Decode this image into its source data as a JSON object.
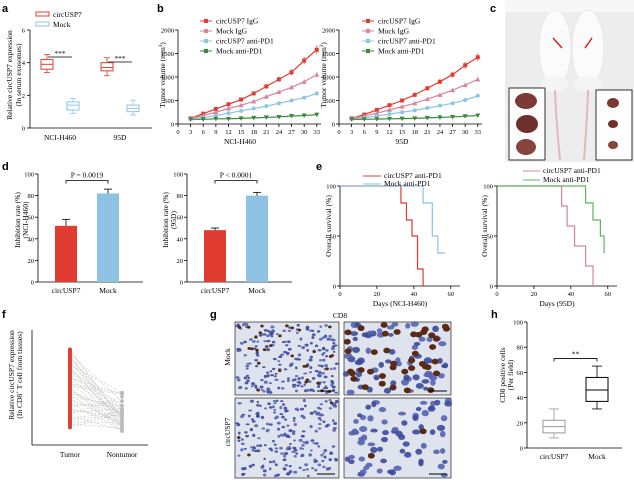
{
  "panels": {
    "a": {
      "letter": "a",
      "legend": [
        "circUSP7",
        "Mock"
      ],
      "ylabel": "Relative circUSP7 expression",
      "ylabel2": "(In serum exosomes)",
      "yticks": [
        "0",
        "2",
        "4",
        "6"
      ],
      "groups": [
        "NCI-H460",
        "95D"
      ],
      "sig": [
        "***",
        "***"
      ],
      "colors": {
        "circ": "#e03c31",
        "mock": "#8ec3e6"
      },
      "boxes": [
        {
          "group": 0,
          "series": "circ",
          "min": 3.4,
          "q1": 3.6,
          "med": 3.9,
          "q3": 4.2,
          "max": 4.5
        },
        {
          "group": 0,
          "series": "mock",
          "min": 0.9,
          "q1": 1.1,
          "med": 1.4,
          "q3": 1.6,
          "max": 1.8
        },
        {
          "group": 1,
          "series": "circ",
          "min": 3.2,
          "q1": 3.5,
          "med": 3.7,
          "q3": 4.0,
          "max": 4.3
        },
        {
          "group": 1,
          "series": "mock",
          "min": 0.8,
          "q1": 1.0,
          "med": 1.2,
          "q3": 1.4,
          "max": 1.7
        }
      ]
    },
    "b": {
      "letter": "b",
      "legend": [
        "circUSP7 IgG",
        "Mock IgG",
        "circUSP7 anti-PD1",
        "Mock anti-PD1"
      ],
      "colors": [
        "#e03c31",
        "#d9849b",
        "#8ec3e6",
        "#3a8a3a"
      ],
      "ylabel": "Tumor volume (mm",
      "ysup": "3",
      "ytail": ")",
      "yticks": [
        "0",
        "500",
        "1000",
        "1500",
        "2000"
      ],
      "xticks": [
        "0",
        "3",
        "6",
        "9",
        "12",
        "15",
        "18",
        "21",
        "24",
        "27",
        "30",
        "33"
      ],
      "titles": [
        "NCI-H460",
        "95D"
      ],
      "charts": [
        {
          "series": [
            {
              "x": [
                3,
                6,
                9,
                12,
                15,
                18,
                21,
                24,
                27,
                30,
                33
              ],
              "y": [
                120,
                220,
                320,
                420,
                520,
                650,
                800,
                950,
                1100,
                1350,
                1580
              ]
            },
            {
              "x": [
                3,
                6,
                9,
                12,
                15,
                18,
                21,
                24,
                27,
                30,
                33
              ],
              "y": [
                120,
                180,
                250,
                330,
                400,
                480,
                580,
                680,
                780,
                900,
                1050
              ]
            },
            {
              "x": [
                3,
                6,
                9,
                12,
                15,
                18,
                21,
                24,
                27,
                30,
                33
              ],
              "y": [
                110,
                140,
                180,
                230,
                280,
                330,
                380,
                440,
                500,
                560,
                650
              ]
            },
            {
              "x": [
                3,
                6,
                9,
                12,
                15,
                18,
                21,
                24,
                27,
                30,
                33
              ],
              "y": [
                100,
                100,
                110,
                110,
                120,
                130,
                140,
                150,
                170,
                180,
                200
              ]
            }
          ]
        },
        {
          "series": [
            {
              "x": [
                3,
                6,
                9,
                12,
                15,
                18,
                21,
                24,
                27,
                30,
                33
              ],
              "y": [
                120,
                200,
                300,
                400,
                500,
                620,
                760,
                900,
                1050,
                1250,
                1420
              ]
            },
            {
              "x": [
                3,
                6,
                9,
                12,
                15,
                18,
                21,
                24,
                27,
                30,
                33
              ],
              "y": [
                120,
                170,
                230,
                300,
                370,
                440,
                530,
                620,
                720,
                830,
                950
              ]
            },
            {
              "x": [
                3,
                6,
                9,
                12,
                15,
                18,
                21,
                24,
                27,
                30,
                33
              ],
              "y": [
                110,
                130,
                170,
                210,
                250,
                290,
                340,
                390,
                440,
                510,
                600
              ]
            },
            {
              "x": [
                3,
                6,
                9,
                12,
                15,
                18,
                21,
                24,
                27,
                30,
                33
              ],
              "y": [
                100,
                100,
                105,
                110,
                115,
                120,
                130,
                140,
                150,
                165,
                180
              ]
            }
          ]
        }
      ]
    },
    "c": {
      "letter": "c"
    },
    "d": {
      "letter": "d",
      "ylabel": "Inhibition rate (%)",
      "ylabel2": [
        "(NCI-H460)",
        "(95D)"
      ],
      "yticks": [
        "0",
        "20",
        "40",
        "60",
        "80",
        "100"
      ],
      "categories": [
        "circUSP7",
        "Mock"
      ],
      "pvalues": [
        "P = 0.0019",
        "P < 0.0001"
      ],
      "colors": [
        "#e03c31",
        "#8ec3e6"
      ],
      "charts": [
        {
          "values": [
            52,
            82
          ],
          "err": [
            6,
            4
          ]
        },
        {
          "values": [
            48,
            80
          ],
          "err": [
            2,
            3
          ]
        }
      ]
    },
    "e": {
      "letter": "e",
      "legend": [
        "circUSP7 anti-PD1",
        "Mock anti-PD1"
      ],
      "colors": [
        [
          "#e03c31",
          "#8ec3e6"
        ],
        [
          "#d9849b",
          "#5cb85c"
        ]
      ],
      "ylabel": "Overall survival (%)",
      "yticks": [
        "0",
        "50",
        "100"
      ],
      "xticks": [
        "0",
        "20",
        "40",
        "60"
      ],
      "xlabels": [
        "Days (NCI-H460)",
        "Days (95D)"
      ],
      "charts": [
        {
          "series": [
            {
              "x": [
                0,
                33,
                33,
                36,
                36,
                39,
                39,
                42,
                42,
                45,
                45
              ],
              "y": [
                100,
                100,
                83,
                83,
                66,
                66,
                50,
                50,
                17,
                17,
                0
              ]
            },
            {
              "x": [
                0,
                45,
                45,
                50,
                50,
                53,
                53,
                57
              ],
              "y": [
                100,
                100,
                83,
                83,
                50,
                50,
                33,
                33
              ]
            }
          ]
        },
        {
          "series": [
            {
              "x": [
                0,
                35,
                35,
                38,
                38,
                42,
                42,
                48,
                48,
                52,
                52
              ],
              "y": [
                100,
                100,
                80,
                80,
                60,
                60,
                40,
                40,
                20,
                20,
                0
              ]
            },
            {
              "x": [
                0,
                48,
                48,
                52,
                52,
                56,
                56,
                58,
                58
              ],
              "y": [
                100,
                100,
                83,
                83,
                66,
                66,
                50,
                50,
                33
              ]
            }
          ]
        }
      ]
    },
    "f": {
      "letter": "f",
      "ylabel": "Relative circUSP7 expression",
      "ylabel2": "(In CD8",
      "ysup": "+",
      "ylabel3": " T cell from tissues)",
      "xticks": [
        "Tumor",
        "Nontumor"
      ],
      "colors": [
        "#e03c31",
        "#bbbbbb"
      ]
    },
    "g": {
      "letter": "g",
      "title": "CD8",
      "rows": [
        "Mock",
        "circUSP7"
      ]
    },
    "h": {
      "letter": "h",
      "ylabel": "CD8 positive cells",
      "ylabel2": "(Per field)",
      "yticks": [
        "0",
        "20",
        "40",
        "60",
        "80",
        "100"
      ],
      "categories": [
        "circUSP7",
        "Mock"
      ],
      "sig": "**",
      "boxes": [
        {
          "min": 8,
          "q1": 12,
          "med": 17,
          "q3": 22,
          "max": 31
        },
        {
          "min": 31,
          "q1": 37,
          "med": 46,
          "q3": 56,
          "max": 65
        }
      ]
    }
  }
}
